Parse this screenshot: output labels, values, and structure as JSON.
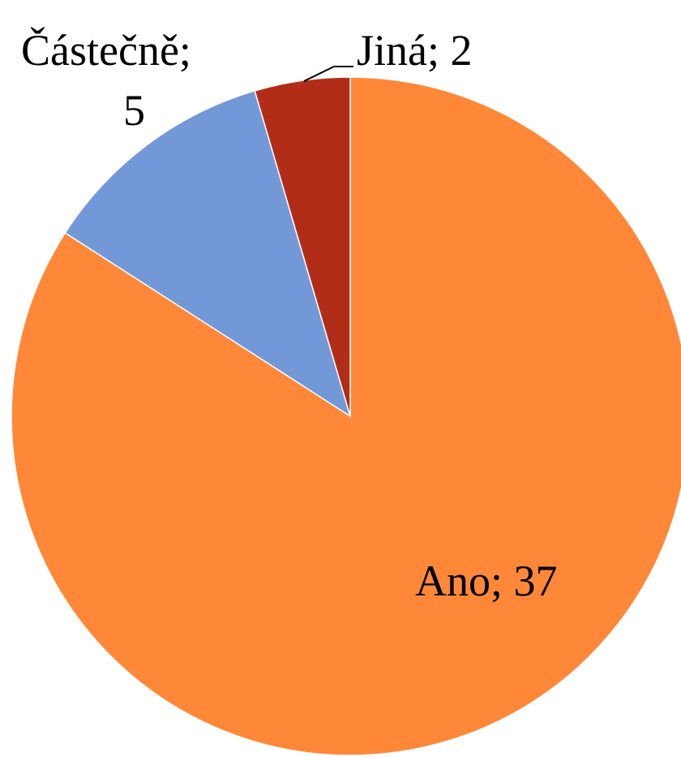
{
  "chart_data": {
    "type": "pie",
    "categories": [
      "Ano",
      "Částečně",
      "Jiná"
    ],
    "values": [
      37,
      5,
      2
    ],
    "colors": [
      "#FF8838",
      "#7398D8",
      "#B22D18"
    ],
    "labels": {
      "ano": "Ano; 37",
      "castecne_line1": "Částečně;",
      "castecne_line2": "5",
      "jina": "Jiná; 2"
    },
    "start_angle": "12 o'clock",
    "direction": "clockwise",
    "legend": "none"
  }
}
